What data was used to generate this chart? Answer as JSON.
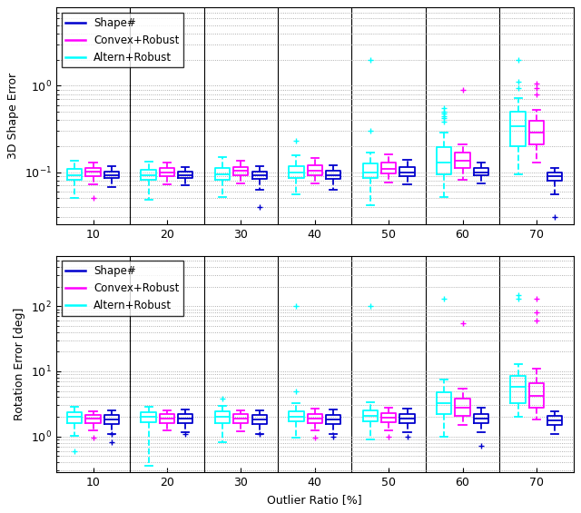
{
  "outlier_ratios": [
    10,
    20,
    30,
    40,
    50,
    60,
    70
  ],
  "colors": {
    "shape": "#0000CD",
    "convex": "#FF00FF",
    "altern": "#00FFFF"
  },
  "legend_labels": [
    "Shape#",
    "Convex+Robust",
    "Altern+Robust"
  ],
  "ax1_ylabel": "3D Shape Error",
  "ax2_ylabel": "Rotation Error [deg]",
  "xlabel": "Outlier Ratio [%]",
  "shape_error": {
    "10": {
      "q1": 0.085,
      "median": 0.093,
      "q3": 0.102,
      "whislo": 0.068,
      "whishi": 0.118,
      "fliers": []
    },
    "20": {
      "q1": 0.085,
      "median": 0.093,
      "q3": 0.101,
      "whislo": 0.07,
      "whishi": 0.115,
      "fliers": []
    },
    "30": {
      "q1": 0.083,
      "median": 0.092,
      "q3": 0.102,
      "whislo": 0.062,
      "whishi": 0.118,
      "fliers": [
        0.04
      ]
    },
    "40": {
      "q1": 0.083,
      "median": 0.092,
      "q3": 0.104,
      "whislo": 0.062,
      "whishi": 0.12,
      "fliers": []
    },
    "50": {
      "q1": 0.09,
      "median": 0.1,
      "q3": 0.115,
      "whislo": 0.072,
      "whishi": 0.138,
      "fliers": []
    },
    "60": {
      "q1": 0.093,
      "median": 0.1,
      "q3": 0.112,
      "whislo": 0.074,
      "whishi": 0.13,
      "fliers": []
    },
    "70": {
      "q1": 0.08,
      "median": 0.09,
      "q3": 0.098,
      "whislo": 0.055,
      "whishi": 0.112,
      "fliers": [
        0.03
      ]
    }
  },
  "convex_error": {
    "10": {
      "q1": 0.09,
      "median": 0.102,
      "q3": 0.113,
      "whislo": 0.073,
      "whishi": 0.13,
      "fliers": [
        0.05
      ]
    },
    "20": {
      "q1": 0.09,
      "median": 0.1,
      "q3": 0.113,
      "whislo": 0.073,
      "whishi": 0.13,
      "fliers": []
    },
    "30": {
      "q1": 0.092,
      "median": 0.103,
      "q3": 0.116,
      "whislo": 0.074,
      "whishi": 0.135,
      "fliers": []
    },
    "40": {
      "q1": 0.092,
      "median": 0.103,
      "q3": 0.12,
      "whislo": 0.075,
      "whishi": 0.145,
      "fliers": []
    },
    "50": {
      "q1": 0.096,
      "median": 0.108,
      "q3": 0.128,
      "whislo": 0.076,
      "whishi": 0.16,
      "fliers": []
    },
    "60": {
      "q1": 0.112,
      "median": 0.135,
      "q3": 0.168,
      "whislo": 0.082,
      "whishi": 0.21,
      "fliers": [
        0.9
      ]
    },
    "70": {
      "q1": 0.21,
      "median": 0.29,
      "q3": 0.39,
      "whislo": 0.13,
      "whishi": 0.52,
      "fliers": [
        0.8,
        0.95,
        1.05
      ]
    }
  },
  "altern_error": {
    "10": {
      "q1": 0.082,
      "median": 0.093,
      "q3": 0.108,
      "whislo": 0.05,
      "whishi": 0.135,
      "fliers": []
    },
    "20": {
      "q1": 0.082,
      "median": 0.093,
      "q3": 0.107,
      "whislo": 0.048,
      "whishi": 0.132,
      "fliers": []
    },
    "30": {
      "q1": 0.082,
      "median": 0.094,
      "q3": 0.113,
      "whislo": 0.052,
      "whishi": 0.148,
      "fliers": []
    },
    "40": {
      "q1": 0.085,
      "median": 0.098,
      "q3": 0.118,
      "whislo": 0.055,
      "whishi": 0.158,
      "fliers": [
        0.23
      ]
    },
    "50": {
      "q1": 0.085,
      "median": 0.1,
      "q3": 0.125,
      "whislo": 0.042,
      "whishi": 0.17,
      "fliers": [
        0.3,
        2.0
      ]
    },
    "60": {
      "q1": 0.095,
      "median": 0.13,
      "q3": 0.195,
      "whislo": 0.052,
      "whishi": 0.29,
      "fliers": [
        0.42,
        0.38,
        0.44,
        0.5,
        0.55,
        0.48
      ]
    },
    "70": {
      "q1": 0.2,
      "median": 0.34,
      "q3": 0.5,
      "whislo": 0.095,
      "whishi": 0.72,
      "fliers": [
        0.95,
        1.1,
        2.0
      ]
    }
  },
  "rot_shape_error": {
    "10": {
      "q1": 1.55,
      "median": 1.82,
      "q3": 2.15,
      "whislo": 1.1,
      "whishi": 2.55,
      "fliers": [
        0.82,
        1.08
      ]
    },
    "20": {
      "q1": 1.58,
      "median": 1.88,
      "q3": 2.18,
      "whislo": 1.15,
      "whishi": 2.6,
      "fliers": [
        1.08
      ]
    },
    "30": {
      "q1": 1.55,
      "median": 1.82,
      "q3": 2.15,
      "whislo": 1.1,
      "whishi": 2.55,
      "fliers": [
        1.1
      ]
    },
    "40": {
      "q1": 1.55,
      "median": 1.82,
      "q3": 2.15,
      "whislo": 1.1,
      "whishi": 2.6,
      "fliers": [
        1.0
      ]
    },
    "50": {
      "q1": 1.6,
      "median": 1.9,
      "q3": 2.2,
      "whislo": 1.15,
      "whishi": 2.7,
      "fliers": [
        1.0
      ]
    },
    "60": {
      "q1": 1.62,
      "median": 1.88,
      "q3": 2.22,
      "whislo": 1.15,
      "whishi": 2.72,
      "fliers": [
        0.72
      ]
    },
    "70": {
      "q1": 1.52,
      "median": 1.78,
      "q3": 2.05,
      "whislo": 1.1,
      "whishi": 2.42,
      "fliers": []
    }
  },
  "rot_convex_error": {
    "10": {
      "q1": 1.58,
      "median": 1.85,
      "q3": 2.12,
      "whislo": 1.22,
      "whishi": 2.45,
      "fliers": [
        0.95
      ]
    },
    "20": {
      "q1": 1.6,
      "median": 1.88,
      "q3": 2.18,
      "whislo": 1.22,
      "whishi": 2.52,
      "fliers": []
    },
    "30": {
      "q1": 1.58,
      "median": 1.85,
      "q3": 2.18,
      "whislo": 1.18,
      "whishi": 2.52,
      "fliers": []
    },
    "40": {
      "q1": 1.62,
      "median": 1.9,
      "q3": 2.22,
      "whislo": 1.22,
      "whishi": 2.65,
      "fliers": [
        0.95
      ]
    },
    "50": {
      "q1": 1.65,
      "median": 1.92,
      "q3": 2.28,
      "whislo": 1.22,
      "whishi": 2.72,
      "fliers": [
        1.0
      ]
    },
    "60": {
      "q1": 2.1,
      "median": 2.8,
      "q3": 3.8,
      "whislo": 1.5,
      "whishi": 5.5,
      "fliers": [
        55.0
      ]
    },
    "70": {
      "q1": 2.8,
      "median": 4.2,
      "q3": 6.5,
      "whislo": 1.8,
      "whishi": 11.0,
      "fliers": [
        60.0,
        80.0,
        130.0
      ]
    }
  },
  "rot_altern_error": {
    "10": {
      "q1": 1.62,
      "median": 1.98,
      "q3": 2.35,
      "whislo": 1.02,
      "whishi": 2.85,
      "fliers": [
        0.6
      ]
    },
    "20": {
      "q1": 1.65,
      "median": 1.98,
      "q3": 2.38,
      "whislo": 0.35,
      "whishi": 2.88,
      "fliers": []
    },
    "30": {
      "q1": 1.62,
      "median": 1.98,
      "q3": 2.4,
      "whislo": 0.82,
      "whishi": 2.95,
      "fliers": [
        3.8
      ]
    },
    "40": {
      "q1": 1.68,
      "median": 2.02,
      "q3": 2.45,
      "whislo": 0.95,
      "whishi": 3.25,
      "fliers": [
        5.0,
        100.0
      ]
    },
    "50": {
      "q1": 1.68,
      "median": 2.08,
      "q3": 2.48,
      "whislo": 0.9,
      "whishi": 3.35,
      "fliers": [
        100.0
      ]
    },
    "60": {
      "q1": 2.2,
      "median": 3.2,
      "q3": 4.8,
      "whislo": 1.0,
      "whishi": 7.5,
      "fliers": [
        130.0
      ]
    },
    "70": {
      "q1": 3.2,
      "median": 5.8,
      "q3": 8.5,
      "whislo": 2.0,
      "whishi": 13.0,
      "fliers": [
        130.0,
        150.0
      ]
    }
  }
}
